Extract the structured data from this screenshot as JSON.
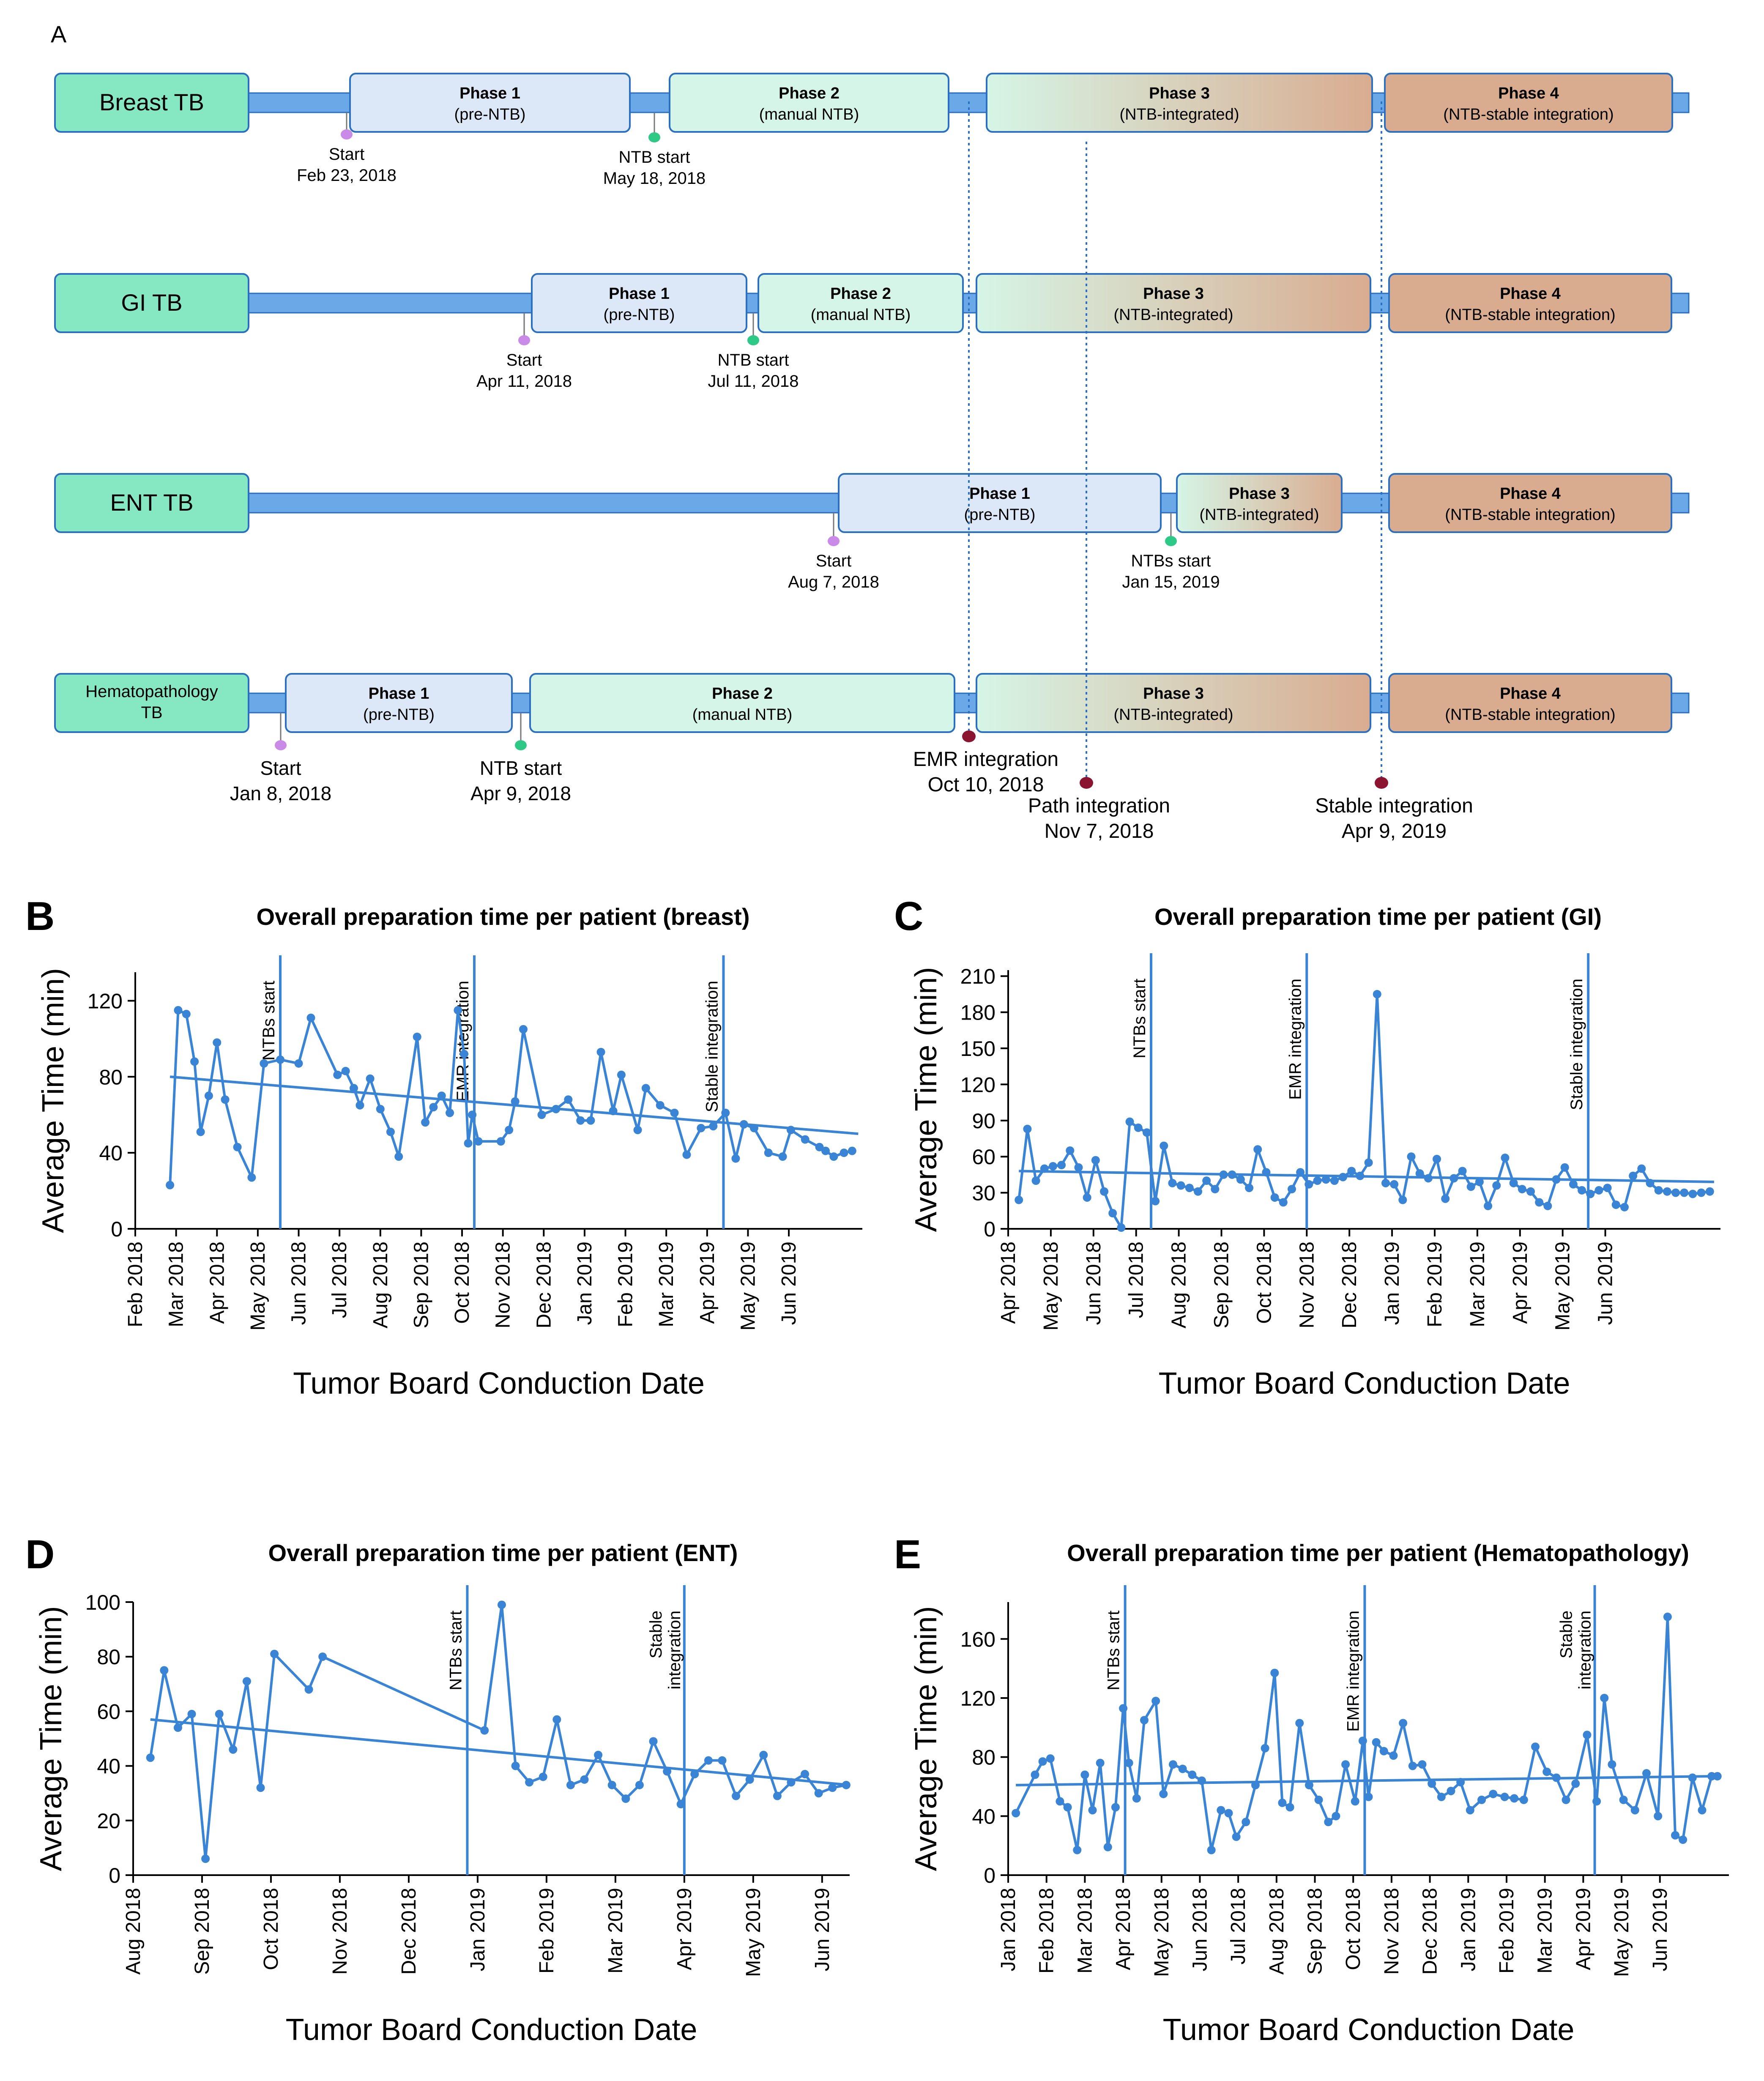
{
  "panel_a": {
    "label": "A",
    "rows": [
      {
        "name": "Breast TB",
        "phases": [
          {
            "title": "Phase 1",
            "subtitle": "(pre-NTB)",
            "style": "p1"
          },
          {
            "title": "Phase 2",
            "subtitle": "(manual NTB)",
            "style": "p2"
          },
          {
            "title": "Phase 3",
            "subtitle": "(NTB-integrated)",
            "style": "p3"
          },
          {
            "title": "Phase 4",
            "subtitle": "(NTB-stable integration)",
            "style": "p4"
          }
        ],
        "markers": [
          {
            "kind": "start",
            "label": "Start",
            "date": "Feb 23, 2018"
          },
          {
            "kind": "ntb",
            "label": "NTB start",
            "date": "May 18, 2018"
          }
        ]
      },
      {
        "name": "GI TB",
        "phases": [
          {
            "title": "Phase 1",
            "subtitle": "(pre-NTB)",
            "style": "p1"
          },
          {
            "title": "Phase 2",
            "subtitle": "(manual NTB)",
            "style": "p2"
          },
          {
            "title": "Phase 3",
            "subtitle": "(NTB-integrated)",
            "style": "p3"
          },
          {
            "title": "Phase 4",
            "subtitle": "(NTB-stable integration)",
            "style": "p4"
          }
        ],
        "markers": [
          {
            "kind": "start",
            "label": "Start",
            "date": "Apr 11, 2018"
          },
          {
            "kind": "ntb",
            "label": "NTB start",
            "date": "Jul 11, 2018"
          }
        ]
      },
      {
        "name": "ENT TB",
        "phases": [
          {
            "title": "Phase 1",
            "subtitle": "(pre-NTB)",
            "style": "p1"
          },
          {
            "title": "Phase 3",
            "subtitle": "(NTB-integrated)",
            "style": "p3"
          },
          {
            "title": "Phase 4",
            "subtitle": "(NTB-stable integration)",
            "style": "p4"
          }
        ],
        "markers": [
          {
            "kind": "start",
            "label": "Start",
            "date": "Aug 7, 2018"
          },
          {
            "kind": "ntb",
            "label": "NTBs start",
            "date": "Jan 15, 2019"
          }
        ]
      },
      {
        "name": "Hematopathology TB",
        "name_lines": [
          "Hematopathology",
          "TB"
        ],
        "phases": [
          {
            "title": "Phase 1",
            "subtitle": "(pre-NTB)",
            "style": "p1"
          },
          {
            "title": "Phase 2",
            "subtitle": "(manual NTB)",
            "style": "p2"
          },
          {
            "title": "Phase 3",
            "subtitle": "(NTB-integrated)",
            "style": "p3"
          },
          {
            "title": "Phase 4",
            "subtitle": "(NTB-stable integration)",
            "style": "p4"
          }
        ],
        "markers": [
          {
            "kind": "start",
            "label": "Start",
            "date": "Jan 8, 2018"
          },
          {
            "kind": "ntb",
            "label": "NTB start",
            "date": "Apr 9, 2018"
          }
        ]
      }
    ],
    "integration_events": [
      {
        "label": "EMR integration",
        "date": "Oct 10, 2018"
      },
      {
        "label": "Path integration",
        "date": "Nov 7, 2018"
      },
      {
        "label": "Stable integration",
        "date": "Apr 9, 2019"
      }
    ],
    "colors": {
      "tb_box": "#86e8c2",
      "axis_bar": "#6aa8e8",
      "p1": "#dce7f8",
      "p2": "#d4f5e8",
      "p3_start": "#d6f5e6",
      "p3_end": "#d9ac90",
      "p4": "#d9ac90",
      "start_dot": "#c98ae8",
      "ntb_dot": "#2ec987",
      "event_dot": "#8b1530",
      "border": "#2a6fc0"
    }
  },
  "chart_data": [
    {
      "panel": "B",
      "type": "line",
      "title": "Overall preparation time per patient (breast)",
      "xlabel": "Tumor Board Conduction Date",
      "ylabel": "Average Time (min)",
      "ylim": [
        0,
        135
      ],
      "yticks": [
        0,
        40,
        80,
        120
      ],
      "xlim": [
        0,
        17.8
      ],
      "xticks": [
        {
          "x": 0,
          "label": "Feb 2018"
        },
        {
          "x": 1,
          "label": "Mar 2018"
        },
        {
          "x": 2,
          "label": "Apr 2018"
        },
        {
          "x": 3,
          "label": "May 2018"
        },
        {
          "x": 4,
          "label": "Jun 2018"
        },
        {
          "x": 5,
          "label": "Jul 2018"
        },
        {
          "x": 6,
          "label": "Aug 2018"
        },
        {
          "x": 7,
          "label": "Sep 2018"
        },
        {
          "x": 8,
          "label": "Oct 2018"
        },
        {
          "x": 9,
          "label": "Nov 2018"
        },
        {
          "x": 10,
          "label": "Dec 2018"
        },
        {
          "x": 11,
          "label": "Jan 2019"
        },
        {
          "x": 12,
          "label": "Feb 2019"
        },
        {
          "x": 13,
          "label": "Mar 2019"
        },
        {
          "x": 14,
          "label": "Apr 2019"
        },
        {
          "x": 15,
          "label": "May 2019"
        },
        {
          "x": 16,
          "label": "Jun 2019"
        }
      ],
      "vlines": [
        {
          "x": 3.55,
          "label": "NTBs start"
        },
        {
          "x": 8.3,
          "label": "EMR integration"
        },
        {
          "x": 14.4,
          "label": "Stable integration"
        }
      ],
      "trend": [
        [
          0.85,
          80
        ],
        [
          17.7,
          50
        ]
      ],
      "x": [
        0.85,
        1.05,
        1.25,
        1.45,
        1.6,
        1.8,
        2.0,
        2.2,
        2.5,
        2.85,
        3.15,
        3.55,
        4.0,
        4.3,
        4.95,
        5.15,
        5.35,
        5.5,
        5.75,
        6.0,
        6.25,
        6.45,
        6.9,
        7.1,
        7.3,
        7.5,
        7.7,
        7.9,
        8.05,
        8.15,
        8.25,
        8.4,
        8.95,
        9.15,
        9.3,
        9.5,
        9.95,
        10.3,
        10.6,
        10.9,
        11.15,
        11.4,
        11.7,
        11.9,
        12.3,
        12.5,
        12.85,
        13.2,
        13.5,
        13.85,
        14.15,
        14.45,
        14.7,
        14.9,
        15.15,
        15.5,
        15.85,
        16.05,
        16.4,
        16.75,
        16.9,
        17.1,
        17.35,
        17.55
      ],
      "values": [
        23,
        115,
        113,
        88,
        51,
        70,
        98,
        68,
        43,
        27,
        87,
        89,
        87,
        111,
        81,
        83,
        74,
        65,
        79,
        63,
        51,
        38,
        101,
        56,
        64,
        70,
        61,
        115,
        92,
        45,
        60,
        46,
        46,
        52,
        67,
        105,
        60,
        63,
        68,
        57,
        57,
        93,
        62,
        81,
        52,
        74,
        65,
        61,
        39,
        53,
        54,
        61,
        37,
        55,
        53,
        40,
        38,
        52,
        47,
        43,
        41,
        38,
        40,
        41
      ]
    },
    {
      "panel": "C",
      "type": "line",
      "title": "Overall preparation time per patient (GI)",
      "xlabel": "Tumor Board Conduction Date",
      "ylabel": "Average Time (min)",
      "ylim": [
        0,
        215
      ],
      "yticks": [
        0,
        30,
        60,
        90,
        120,
        150,
        180,
        210
      ],
      "xlim": [
        0,
        16.7
      ],
      "xticks": [
        {
          "x": 0,
          "label": "Apr 2018"
        },
        {
          "x": 1,
          "label": "May 2018"
        },
        {
          "x": 2,
          "label": "Jun 2018"
        },
        {
          "x": 3,
          "label": "Jul 2018"
        },
        {
          "x": 4,
          "label": "Aug 2018"
        },
        {
          "x": 5,
          "label": "Sep 2018"
        },
        {
          "x": 6,
          "label": "Oct 2018"
        },
        {
          "x": 7,
          "label": "Nov 2018"
        },
        {
          "x": 8,
          "label": "Dec 2018"
        },
        {
          "x": 9,
          "label": "Jan 2019"
        },
        {
          "x": 10,
          "label": "Feb 2019"
        },
        {
          "x": 11,
          "label": "Mar 2019"
        },
        {
          "x": 12,
          "label": "Apr 2019"
        },
        {
          "x": 13,
          "label": "May 2019"
        },
        {
          "x": 14,
          "label": "Jun 2019"
        }
      ],
      "vlines": [
        {
          "x": 3.35,
          "label": "NTBs start"
        },
        {
          "x": 7.0,
          "label": "EMR integration"
        },
        {
          "x": 13.6,
          "label": "Stable integration"
        }
      ],
      "trend": [
        [
          0.25,
          48
        ],
        [
          16.55,
          39
        ]
      ],
      "x": [
        0.25,
        0.45,
        0.65,
        0.85,
        1.05,
        1.25,
        1.45,
        1.65,
        1.85,
        2.05,
        2.25,
        2.45,
        2.65,
        2.85,
        3.05,
        3.25,
        3.45,
        3.65,
        3.85,
        4.05,
        4.25,
        4.45,
        4.65,
        4.85,
        5.05,
        5.25,
        5.45,
        5.65,
        5.85,
        6.05,
        6.25,
        6.45,
        6.65,
        6.85,
        7.05,
        7.25,
        7.45,
        7.65,
        7.85,
        8.05,
        8.25,
        8.45,
        8.65,
        8.85,
        9.05,
        9.25,
        9.45,
        9.65,
        9.85,
        10.05,
        10.25,
        10.45,
        10.65,
        10.85,
        11.05,
        11.25,
        11.45,
        11.65,
        11.85,
        12.05,
        12.25,
        12.45,
        12.65,
        12.85,
        13.05,
        13.25,
        13.45,
        13.65,
        13.85,
        14.05,
        14.25,
        14.45,
        14.65,
        14.85,
        15.05,
        15.25,
        15.45,
        15.65,
        15.85,
        16.05,
        16.25,
        16.45
      ],
      "values": [
        24,
        83,
        40,
        50,
        52,
        53,
        65,
        51,
        26,
        57,
        31,
        13,
        1,
        89,
        84,
        80,
        23,
        69,
        38,
        36,
        34,
        31,
        40,
        33,
        45,
        45,
        41,
        34,
        66,
        47,
        26,
        22,
        33,
        47,
        37,
        40,
        41,
        40,
        43,
        48,
        44,
        55,
        195,
        38,
        37,
        24,
        60,
        46,
        42,
        58,
        25,
        42,
        48,
        35,
        39,
        19,
        36,
        59,
        38,
        33,
        31,
        22,
        19,
        41,
        51,
        37,
        32,
        29,
        32,
        34,
        20,
        18,
        44,
        50,
        38,
        32,
        31,
        30,
        30,
        29,
        30,
        31
      ]
    },
    {
      "panel": "D",
      "type": "line",
      "title": "Overall preparation time per patient (ENT)",
      "xlabel": "Tumor Board Conduction Date",
      "ylabel": "Average Time (min)",
      "ylim": [
        0,
        100
      ],
      "yticks": [
        0,
        20,
        40,
        60,
        80,
        100
      ],
      "xlim": [
        0,
        10.4
      ],
      "xticks": [
        {
          "x": 0,
          "label": "Aug 2018"
        },
        {
          "x": 1,
          "label": "Sep 2018"
        },
        {
          "x": 2,
          "label": "Oct 2018"
        },
        {
          "x": 3,
          "label": "Nov 2018"
        },
        {
          "x": 4,
          "label": "Dec 2018"
        },
        {
          "x": 5,
          "label": "Jan 2019"
        },
        {
          "x": 6,
          "label": "Feb 2019"
        },
        {
          "x": 7,
          "label": "Mar 2019"
        },
        {
          "x": 8,
          "label": "Apr 2019"
        },
        {
          "x": 9,
          "label": "May 2019"
        },
        {
          "x": 10,
          "label": "Jun 2019"
        }
      ],
      "vlines": [
        {
          "x": 4.85,
          "label": "NTBs start"
        },
        {
          "x": 8.0,
          "label": "Stable integration"
        }
      ],
      "trend": [
        [
          0.25,
          57
        ],
        [
          10.4,
          33
        ]
      ],
      "x": [
        0.25,
        0.45,
        0.65,
        0.85,
        1.05,
        1.25,
        1.45,
        1.65,
        1.85,
        2.05,
        2.55,
        2.75,
        5.1,
        5.35,
        5.55,
        5.75,
        5.95,
        6.15,
        6.35,
        6.55,
        6.75,
        6.95,
        7.15,
        7.35,
        7.55,
        7.75,
        7.95,
        8.15,
        8.35,
        8.55,
        8.75,
        8.95,
        9.15,
        9.35,
        9.55,
        9.75,
        9.95,
        10.15,
        10.35
      ],
      "values": [
        43,
        75,
        54,
        59,
        6,
        59,
        46,
        71,
        32,
        81,
        68,
        80,
        53,
        99,
        40,
        34,
        36,
        57,
        33,
        35,
        44,
        33,
        28,
        33,
        49,
        38,
        26,
        37,
        42,
        42,
        29,
        35,
        44,
        29,
        34,
        37,
        30,
        32,
        33
      ]
    },
    {
      "panel": "E",
      "type": "line",
      "title": "Overall preparation time per patient (Hematopathology)",
      "xlabel": "Tumor Board Conduction Date",
      "ylabel": "Average Time (min)",
      "ylim": [
        0,
        185
      ],
      "yticks": [
        0,
        40,
        80,
        120,
        160
      ],
      "xlim": [
        0,
        18.8
      ],
      "xticks": [
        {
          "x": 0,
          "label": "Jan 2018"
        },
        {
          "x": 1,
          "label": "Feb 2018"
        },
        {
          "x": 2,
          "label": "Mar 2018"
        },
        {
          "x": 3,
          "label": "Apr 2018"
        },
        {
          "x": 4,
          "label": "May 2018"
        },
        {
          "x": 5,
          "label": "Jun 2018"
        },
        {
          "x": 6,
          "label": "Jul 2018"
        },
        {
          "x": 7,
          "label": "Aug 2018"
        },
        {
          "x": 8,
          "label": "Sep 2018"
        },
        {
          "x": 9,
          "label": "Oct 2018"
        },
        {
          "x": 10,
          "label": "Nov 2018"
        },
        {
          "x": 11,
          "label": "Dec 2018"
        },
        {
          "x": 12,
          "label": "Jan 2019"
        },
        {
          "x": 13,
          "label": "Feb 2019"
        },
        {
          "x": 14,
          "label": "Mar 2019"
        },
        {
          "x": 15,
          "label": "Apr 2019"
        },
        {
          "x": 16,
          "label": "May 2019"
        },
        {
          "x": 17,
          "label": "Jun 2019"
        }
      ],
      "vlines": [
        {
          "x": 3.05,
          "label": "NTBs start"
        },
        {
          "x": 9.3,
          "label": "EMR integration"
        },
        {
          "x": 15.3,
          "label": "Stable integration"
        }
      ],
      "trend": [
        [
          0.2,
          61
        ],
        [
          18.4,
          67
        ]
      ],
      "x": [
        0.2,
        0.7,
        0.9,
        1.1,
        1.35,
        1.55,
        1.8,
        2.0,
        2.2,
        2.4,
        2.6,
        2.8,
        3.0,
        3.15,
        3.35,
        3.55,
        3.85,
        4.05,
        4.3,
        4.55,
        4.8,
        5.05,
        5.3,
        5.55,
        5.75,
        5.95,
        6.2,
        6.45,
        6.7,
        6.95,
        7.15,
        7.35,
        7.6,
        7.85,
        8.1,
        8.35,
        8.55,
        8.8,
        9.05,
        9.25,
        9.4,
        9.6,
        9.8,
        10.05,
        10.3,
        10.55,
        10.8,
        11.05,
        11.3,
        11.55,
        11.8,
        12.05,
        12.35,
        12.65,
        12.95,
        13.2,
        13.45,
        13.75,
        14.05,
        14.3,
        14.55,
        14.8,
        15.1,
        15.35,
        15.55,
        15.75,
        16.05,
        16.35,
        16.65,
        16.95,
        17.2,
        17.4,
        17.6,
        17.85,
        18.1,
        18.35,
        18.5
      ],
      "values": [
        42,
        68,
        77,
        79,
        50,
        46,
        17,
        68,
        44,
        76,
        19,
        46,
        113,
        76,
        52,
        105,
        118,
        55,
        75,
        72,
        68,
        64,
        17,
        44,
        42,
        26,
        36,
        61,
        86,
        137,
        49,
        46,
        103,
        61,
        51,
        36,
        40,
        75,
        50,
        91,
        53,
        90,
        84,
        81,
        103,
        74,
        75,
        62,
        53,
        57,
        63,
        44,
        51,
        55,
        53,
        52,
        51,
        87,
        70,
        66,
        51,
        62,
        95,
        50,
        120,
        75,
        51,
        44,
        69,
        40,
        175,
        27,
        24,
        66,
        44,
        67,
        67
      ]
    }
  ]
}
